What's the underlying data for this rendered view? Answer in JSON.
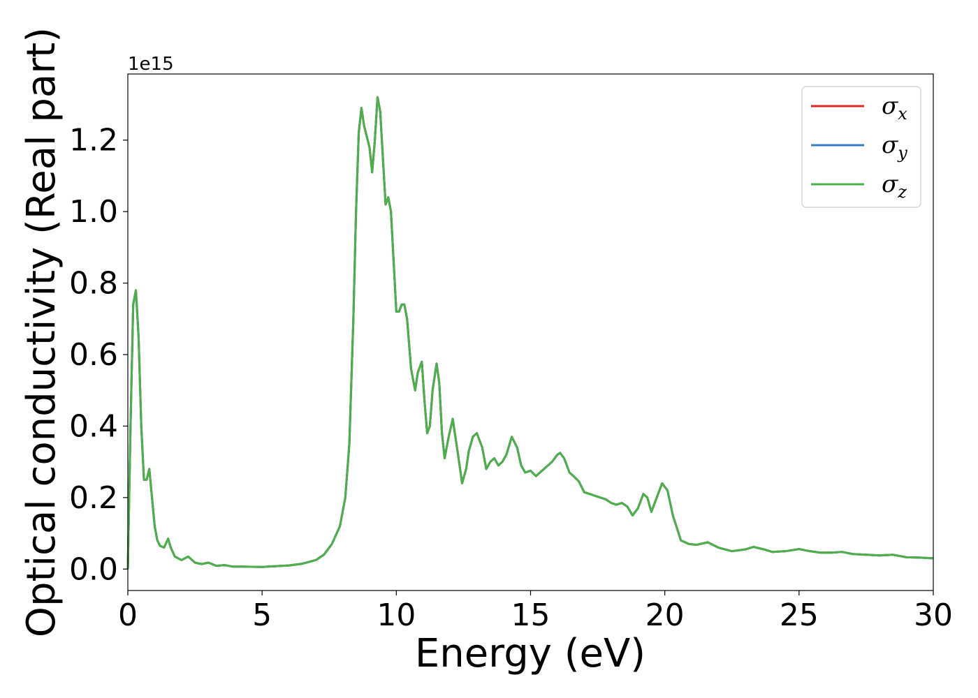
{
  "chart_data": {
    "type": "line",
    "xlabel": "Energy (eV)",
    "ylabel": "Optical conductivity (Real part)",
    "y_offset_label": "1e15",
    "xlim": [
      0,
      30
    ],
    "ylim": [
      -0.06,
      1.385
    ],
    "y_scale_exponent": 15,
    "x_ticks": [
      0,
      5,
      10,
      15,
      20,
      25,
      30
    ],
    "x_tick_labels": [
      "0",
      "5",
      "10",
      "15",
      "20",
      "25",
      "30"
    ],
    "y_ticks": [
      0.0,
      0.2,
      0.4,
      0.6,
      0.8,
      1.0,
      1.2
    ],
    "y_tick_labels": [
      "0.0",
      "0.2",
      "0.4",
      "0.6",
      "0.8",
      "1.0",
      "1.2"
    ],
    "grid": false,
    "legend_position": "top-right",
    "series": [
      {
        "name": "σx",
        "name_base": "σ",
        "name_sub": "x",
        "color": "#d62728"
      },
      {
        "name": "σy",
        "name_base": "σ",
        "name_sub": "y",
        "color": "#3a7cc0"
      },
      {
        "name": "σz",
        "name_base": "σ",
        "name_sub": "z",
        "color": "#4daf4a"
      }
    ],
    "shared_values_note": "all three series coincide",
    "x": [
      0.0,
      0.1,
      0.2,
      0.3,
      0.4,
      0.5,
      0.6,
      0.7,
      0.8,
      0.9,
      1.0,
      1.1,
      1.2,
      1.35,
      1.5,
      1.6,
      1.75,
      2.0,
      2.25,
      2.5,
      2.75,
      3.0,
      3.3,
      3.6,
      3.9,
      4.2,
      5.0,
      6.0,
      6.5,
      7.0,
      7.3,
      7.6,
      7.9,
      8.1,
      8.25,
      8.4,
      8.5,
      8.6,
      8.7,
      8.8,
      8.9,
      9.0,
      9.1,
      9.2,
      9.3,
      9.4,
      9.5,
      9.6,
      9.7,
      9.8,
      9.9,
      10.0,
      10.1,
      10.2,
      10.3,
      10.4,
      10.55,
      10.7,
      10.8,
      10.95,
      11.05,
      11.15,
      11.25,
      11.35,
      11.5,
      11.6,
      11.7,
      11.8,
      11.95,
      12.1,
      12.3,
      12.45,
      12.6,
      12.7,
      12.85,
      13.0,
      13.2,
      13.35,
      13.5,
      13.65,
      13.8,
      13.95,
      14.1,
      14.3,
      14.5,
      14.65,
      14.8,
      15.0,
      15.2,
      15.5,
      15.8,
      16.0,
      16.1,
      16.25,
      16.45,
      16.6,
      16.8,
      17.0,
      17.2,
      17.4,
      17.6,
      17.8,
      18.0,
      18.2,
      18.4,
      18.6,
      18.8,
      19.0,
      19.2,
      19.35,
      19.5,
      19.7,
      19.9,
      20.1,
      20.3,
      20.6,
      20.9,
      21.2,
      21.6,
      22.0,
      22.5,
      23.0,
      23.3,
      23.7,
      24.0,
      24.5,
      25.0,
      25.4,
      25.8,
      26.2,
      26.6,
      27.0,
      27.5,
      28.0,
      28.5,
      29.0,
      29.5,
      30.0
    ],
    "values": [
      0.0,
      0.4,
      0.74,
      0.78,
      0.65,
      0.4,
      0.25,
      0.25,
      0.28,
      0.2,
      0.12,
      0.08,
      0.065,
      0.06,
      0.085,
      0.06,
      0.035,
      0.025,
      0.035,
      0.018,
      0.014,
      0.018,
      0.009,
      0.011,
      0.007,
      0.007,
      0.006,
      0.01,
      0.015,
      0.025,
      0.04,
      0.07,
      0.12,
      0.2,
      0.35,
      0.7,
      1.0,
      1.22,
      1.29,
      1.24,
      1.21,
      1.18,
      1.11,
      1.2,
      1.32,
      1.28,
      1.15,
      1.02,
      1.04,
      1.0,
      0.86,
      0.72,
      0.72,
      0.74,
      0.74,
      0.7,
      0.56,
      0.5,
      0.55,
      0.58,
      0.47,
      0.38,
      0.4,
      0.5,
      0.575,
      0.52,
      0.38,
      0.31,
      0.37,
      0.42,
      0.32,
      0.24,
      0.28,
      0.33,
      0.37,
      0.38,
      0.34,
      0.28,
      0.3,
      0.31,
      0.29,
      0.3,
      0.32,
      0.37,
      0.34,
      0.29,
      0.27,
      0.275,
      0.26,
      0.28,
      0.3,
      0.32,
      0.325,
      0.31,
      0.27,
      0.26,
      0.245,
      0.215,
      0.21,
      0.205,
      0.2,
      0.195,
      0.185,
      0.18,
      0.185,
      0.175,
      0.15,
      0.17,
      0.21,
      0.2,
      0.16,
      0.2,
      0.24,
      0.22,
      0.15,
      0.08,
      0.07,
      0.068,
      0.075,
      0.06,
      0.05,
      0.055,
      0.062,
      0.055,
      0.048,
      0.05,
      0.056,
      0.05,
      0.046,
      0.046,
      0.048,
      0.042,
      0.04,
      0.038,
      0.04,
      0.033,
      0.032,
      0.03
    ]
  }
}
